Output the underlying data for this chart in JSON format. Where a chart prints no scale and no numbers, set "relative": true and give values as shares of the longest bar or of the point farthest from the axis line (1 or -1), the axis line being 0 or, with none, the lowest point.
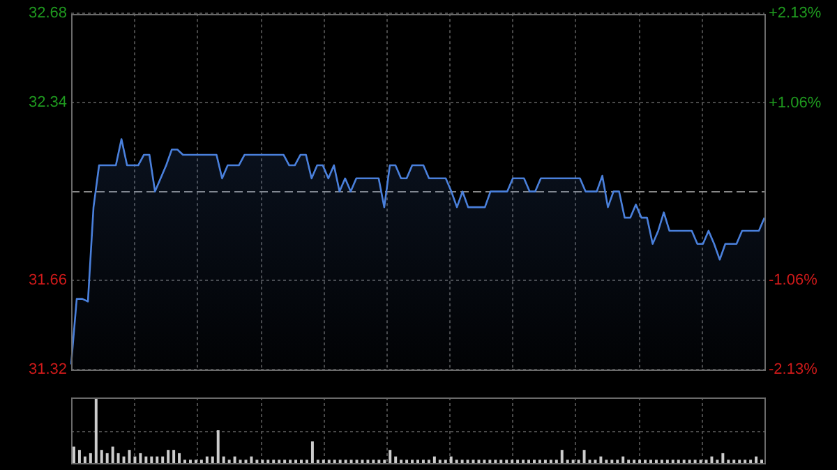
{
  "chart_data": [
    {
      "type": "area",
      "categories": [
        null,
        null,
        null,
        null,
        null,
        null,
        null,
        null,
        null,
        null,
        null,
        null,
        null,
        null,
        null,
        null,
        null,
        null,
        null,
        null,
        null,
        null,
        null,
        null,
        null,
        null,
        null,
        null,
        null,
        null,
        null,
        null,
        null,
        null,
        null,
        null,
        null,
        null,
        null,
        null,
        null,
        null,
        null,
        null,
        null,
        null,
        null,
        null,
        null,
        null,
        null,
        null,
        null,
        null,
        null,
        null,
        null,
        null,
        null,
        null,
        null,
        null,
        null,
        null,
        null,
        null,
        null,
        null,
        null,
        null,
        null,
        null,
        null,
        null,
        null,
        null,
        null,
        null,
        null,
        null,
        null,
        null,
        null,
        null,
        null,
        null,
        null,
        null,
        null,
        null,
        null,
        null,
        null,
        null,
        null,
        null,
        null,
        null,
        null,
        null,
        null,
        null,
        null,
        null,
        null,
        null,
        null,
        null,
        null,
        null,
        null,
        null,
        null,
        null,
        null,
        null,
        null,
        null,
        null,
        null,
        null,
        null,
        null,
        null,
        null
      ],
      "series": [
        {
          "color": "#4a80dc",
          "values": [
            31.34,
            31.59,
            31.59,
            31.58,
            31.94,
            32.1,
            32.1,
            32.1,
            32.1,
            32.2,
            32.1,
            32.1,
            32.1,
            32.14,
            32.14,
            32.0,
            32.05,
            32.1,
            32.16,
            32.16,
            32.14,
            32.14,
            32.14,
            32.14,
            32.14,
            32.14,
            32.14,
            32.05,
            32.1,
            32.1,
            32.1,
            32.14,
            32.14,
            32.14,
            32.14,
            32.14,
            32.14,
            32.14,
            32.14,
            32.1,
            32.1,
            32.14,
            32.14,
            32.05,
            32.1,
            32.1,
            32.05,
            32.1,
            32.0,
            32.05,
            32.0,
            32.05,
            32.05,
            32.05,
            32.05,
            32.05,
            31.94,
            32.1,
            32.1,
            32.05,
            32.05,
            32.1,
            32.1,
            32.1,
            32.05,
            32.05,
            32.05,
            32.05,
            32.0,
            31.94,
            32.0,
            31.94,
            31.94,
            31.94,
            31.94,
            32.0,
            32.0,
            32.0,
            32.0,
            32.05,
            32.05,
            32.05,
            32.0,
            32.0,
            32.05,
            32.05,
            32.05,
            32.05,
            32.05,
            32.05,
            32.05,
            32.05,
            32.0,
            32.0,
            32.0,
            32.06,
            31.94,
            32.0,
            32.0,
            31.9,
            31.9,
            31.95,
            31.9,
            31.9,
            31.8,
            31.85,
            31.92,
            31.85,
            31.85,
            31.85,
            31.85,
            31.85,
            31.8,
            31.8,
            31.85,
            31.8,
            31.74,
            31.8,
            31.8,
            31.8,
            31.85,
            31.85,
            31.85,
            31.85,
            31.9
          ]
        }
      ],
      "ylim": [
        31.32,
        32.68
      ],
      "yticks": [
        31.32,
        31.66,
        32.34,
        32.68
      ],
      "y2lim": [
        -2.13,
        2.13
      ],
      "y2ticks": [
        {
          "value": -2.13,
          "label": "-2.13%"
        },
        {
          "value": -1.06,
          "label": "-1.06%"
        },
        {
          "value": 1.06,
          "label": "+1.06%"
        },
        {
          "value": 2.13,
          "label": "+2.13%"
        }
      ],
      "ref_lines": [
        {
          "axis": "y",
          "value": 32.0,
          "color": "#888888",
          "line_style": "dashed"
        }
      ],
      "tick_labels": "y",
      "grid": true,
      "legend": false
    },
    {
      "type": "bar",
      "relative": true,
      "color": "#cccccc",
      "grid": true,
      "legend": false,
      "categories": [
        null,
        null,
        null,
        null,
        null,
        null,
        null,
        null,
        null,
        null,
        null,
        null,
        null,
        null,
        null,
        null,
        null,
        null,
        null,
        null,
        null,
        null,
        null,
        null,
        null,
        null,
        null,
        null,
        null,
        null,
        null,
        null,
        null,
        null,
        null,
        null,
        null,
        null,
        null,
        null,
        null,
        null,
        null,
        null,
        null,
        null,
        null,
        null,
        null,
        null,
        null,
        null,
        null,
        null,
        null,
        null,
        null,
        null,
        null,
        null,
        null,
        null,
        null,
        null,
        null,
        null,
        null,
        null,
        null,
        null,
        null,
        null,
        null,
        null,
        null,
        null,
        null,
        null,
        null,
        null,
        null,
        null,
        null,
        null,
        null,
        null,
        null,
        null,
        null,
        null,
        null,
        null,
        null,
        null,
        null,
        null,
        null,
        null,
        null,
        null,
        null,
        null,
        null,
        null,
        null,
        null,
        null,
        null,
        null,
        null,
        null,
        null,
        null,
        null,
        null,
        null,
        null,
        null,
        null,
        null,
        null,
        null,
        null,
        null,
        null
      ],
      "values": [
        0.25,
        0.2,
        0.1,
        0.15,
        1,
        0.2,
        0.15,
        0.25,
        0.15,
        0.1,
        0.2,
        0.1,
        0.15,
        0.1,
        0.1,
        0.1,
        0.1,
        0.2,
        0.2,
        0.15,
        0.05,
        0.05,
        0.05,
        0.05,
        0.1,
        0.1,
        0.5,
        0.1,
        0.05,
        0.1,
        0.05,
        0.05,
        0.1,
        0.05,
        0.05,
        0.05,
        0.05,
        0.05,
        0.05,
        0.05,
        0.05,
        0.05,
        0.05,
        0.33,
        0.05,
        0.05,
        0.05,
        0.05,
        0.05,
        0.05,
        0.05,
        0.05,
        0.05,
        0.05,
        0.05,
        0.05,
        0.05,
        0.2,
        0.1,
        0.05,
        0.05,
        0.05,
        0.05,
        0.05,
        0.05,
        0.1,
        0.05,
        0.05,
        0.1,
        0.05,
        0.05,
        0.05,
        0.05,
        0.05,
        0.05,
        0.05,
        0.05,
        0.05,
        0.05,
        0.05,
        0.05,
        0.05,
        0.05,
        0.05,
        0.05,
        0.05,
        0.05,
        0.05,
        0.2,
        0.05,
        0.05,
        0.05,
        0.2,
        0.05,
        0.05,
        0.1,
        0.05,
        0.05,
        0.05,
        0.1,
        0.05,
        0.05,
        0.05,
        0.05,
        0.05,
        0.05,
        0.05,
        0.05,
        0.05,
        0.05,
        0.05,
        0.05,
        0.05,
        0.05,
        0.05,
        0.1,
        0.05,
        0.15,
        0.05,
        0.05,
        0.05,
        0.05,
        0.05,
        0.1,
        0.05
      ]
    }
  ]
}
